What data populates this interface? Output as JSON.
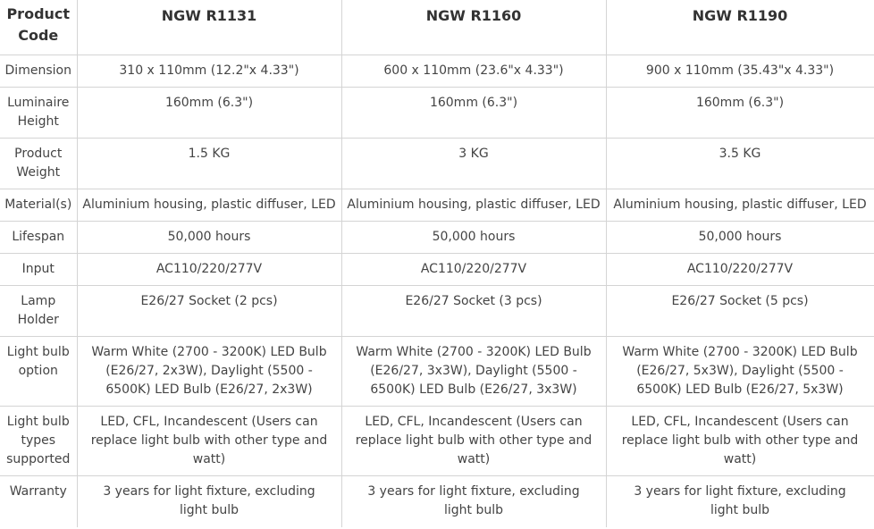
{
  "table": {
    "header": [
      "Product Code",
      "NGW R1131",
      "NGW R1160",
      "NGW R1190"
    ],
    "rows": [
      {
        "label": "Dimension",
        "values": [
          "310 x 110mm (12.2\"x 4.33\")",
          "600 x 110mm (23.6\"x 4.33\")",
          "900 x 110mm (35.43\"x 4.33\")"
        ]
      },
      {
        "label": "Luminaire Height",
        "values": [
          "160mm (6.3\")",
          "160mm (6.3\")",
          "160mm (6.3\")"
        ]
      },
      {
        "label": "Product Weight",
        "values": [
          "1.5 KG",
          "3 KG",
          "3.5 KG"
        ]
      },
      {
        "label": "Material(s)",
        "values": [
          "Aluminium housing, plastic diffuser, LED",
          "Aluminium housing, plastic diffuser, LED",
          "Aluminium housing, plastic diffuser, LED"
        ]
      },
      {
        "label": "Lifespan",
        "values": [
          "50,000 hours",
          "50,000 hours",
          "50,000 hours"
        ]
      },
      {
        "label": "Input",
        "values": [
          "AC110/220/277V",
          "AC110/220/277V",
          "AC110/220/277V"
        ]
      },
      {
        "label": "Lamp Holder",
        "values": [
          "E26/27 Socket (2 pcs)",
          "E26/27 Socket (3 pcs)",
          "E26/27 Socket (5 pcs)"
        ]
      },
      {
        "label": "Light bulb option",
        "values": [
          "Warm White (2700 - 3200K) LED Bulb (E26/27, 2x3W), Daylight (5500 - 6500K) LED Bulb (E26/27, 2x3W)",
          "Warm White (2700 - 3200K) LED Bulb (E26/27, 3x3W), Daylight (5500 - 6500K) LED Bulb (E26/27, 3x3W)",
          "Warm White (2700 - 3200K) LED Bulb (E26/27, 5x3W), Daylight (5500 - 6500K) LED Bulb (E26/27, 5x3W)"
        ]
      },
      {
        "label": "Light bulb types supported",
        "values": [
          "LED, CFL, Incandescent (Users can replace light bulb with other type and watt)",
          "LED, CFL, Incandescent (Users can replace light bulb with other type and watt)",
          "LED, CFL, Incandescent (Users can replace light bulb with other type and watt)"
        ]
      },
      {
        "label": "Warranty",
        "values": [
          "3 years for light fixture, excluding light bulb",
          "3 years for light fixture, excluding light bulb",
          "3 years for light fixture, excluding light bulb"
        ]
      }
    ]
  }
}
